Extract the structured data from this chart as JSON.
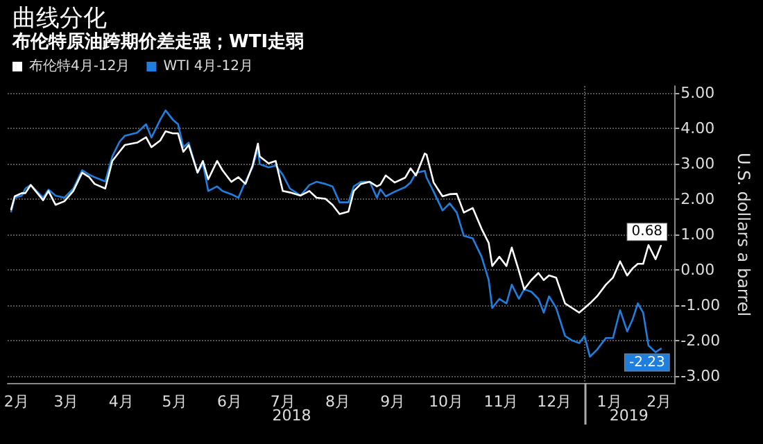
{
  "chart_data": {
    "type": "line",
    "title": "曲线分化",
    "subtitle": "布伦特原油跨期价差走强；WTI走弱",
    "ylabel": "U.S. dollars a barrel",
    "x": [
      "2018-02-12",
      "2018-02-14",
      "2018-02-18",
      "2018-02-20",
      "2018-02-23",
      "2018-03-02",
      "2018-03-05",
      "2018-03-09",
      "2018-03-14",
      "2018-03-19",
      "2018-03-24",
      "2018-03-28",
      "2018-03-31",
      "2018-04-06",
      "2018-04-10",
      "2018-04-14",
      "2018-04-17",
      "2018-04-24",
      "2018-04-29",
      "2018-05-02",
      "2018-05-07",
      "2018-05-10",
      "2018-05-14",
      "2018-05-17",
      "2018-05-20",
      "2018-05-23",
      "2018-05-28",
      "2018-05-31",
      "2018-06-03",
      "2018-06-08",
      "2018-06-11",
      "2018-06-16",
      "2018-06-20",
      "2018-06-24",
      "2018-06-28",
      "2018-07-01",
      "2018-07-02",
      "2018-07-07",
      "2018-07-11",
      "2018-07-15",
      "2018-07-19",
      "2018-07-25",
      "2018-07-30",
      "2018-08-03",
      "2018-08-08",
      "2018-08-12",
      "2018-08-16",
      "2018-08-21",
      "2018-08-24",
      "2018-08-28",
      "2018-09-02",
      "2018-09-06",
      "2018-09-08",
      "2018-09-11",
      "2018-09-16",
      "2018-09-22",
      "2018-09-25",
      "2018-09-28",
      "2018-10-03",
      "2018-10-04",
      "2018-10-08",
      "2018-10-13",
      "2018-10-17",
      "2018-10-21",
      "2018-10-25",
      "2018-10-30",
      "2018-11-04",
      "2018-11-08",
      "2018-11-10",
      "2018-11-14",
      "2018-11-18",
      "2018-11-21",
      "2018-11-25",
      "2018-11-28",
      "2018-12-02",
      "2018-12-06",
      "2018-12-09",
      "2018-12-12",
      "2018-12-16",
      "2018-12-21",
      "2018-12-25",
      "2018-12-29",
      "2019-01-01",
      "2019-01-04",
      "2019-01-08",
      "2019-01-13",
      "2019-01-17",
      "2019-01-21",
      "2019-01-25",
      "2019-01-28",
      "2019-01-31",
      "2019-02-03",
      "2019-02-06",
      "2019-02-10",
      "2019-02-13"
    ],
    "series": [
      {
        "name": "布伦特4月-12月",
        "color": "#ffffff",
        "values": [
          1.71,
          2.08,
          2.17,
          2.17,
          2.4,
          1.97,
          2.23,
          1.84,
          1.94,
          2.23,
          2.75,
          2.62,
          2.43,
          2.3,
          3.08,
          3.34,
          3.53,
          3.6,
          3.75,
          3.47,
          3.66,
          3.92,
          3.86,
          3.86,
          3.34,
          3.53,
          2.75,
          3.08,
          2.56,
          3.08,
          2.82,
          2.49,
          2.62,
          2.43,
          2.95,
          3.57,
          3.21,
          3.01,
          3.08,
          2.23,
          2.19,
          2.1,
          2.23,
          2.04,
          2.01,
          1.84,
          1.58,
          1.65,
          2.23,
          2.43,
          2.49,
          2.36,
          2.41,
          2.67,
          2.47,
          2.61,
          2.87,
          2.67,
          3.29,
          3.26,
          2.47,
          2.08,
          2.14,
          2.15,
          1.62,
          1.75,
          1.16,
          0.76,
          0.11,
          0.37,
          0.11,
          0.63,
          -0.03,
          -0.55,
          -0.29,
          -0.09,
          -0.29,
          -0.16,
          -0.22,
          -0.95,
          -1.08,
          -1.21,
          -1.08,
          -0.95,
          -0.75,
          -0.42,
          -0.22,
          0.24,
          -0.16,
          0.04,
          0.17,
          0.17,
          0.7,
          0.3,
          0.68
        ],
        "value_labels": [
          null,
          null,
          null,
          null,
          null,
          null,
          null,
          null,
          null,
          null,
          null,
          null,
          null,
          null,
          null,
          null,
          null,
          null,
          null,
          null,
          null,
          null,
          null,
          null,
          null,
          null,
          null,
          null,
          null,
          null,
          null,
          null,
          null,
          null,
          null,
          null,
          null,
          null,
          null,
          null,
          null,
          null,
          null,
          null,
          null,
          null,
          null,
          null,
          null,
          null,
          null,
          null,
          null,
          null,
          null,
          null,
          null,
          null,
          null,
          null,
          null,
          null,
          null,
          null,
          null,
          null,
          null,
          null,
          null,
          null,
          null,
          null,
          null,
          null,
          null,
          null,
          null,
          null,
          null,
          null,
          null,
          null,
          null,
          null,
          null,
          null,
          null,
          null,
          null,
          null,
          null,
          null,
          null,
          null,
          "0.68"
        ]
      },
      {
        "name": "WTI 4月-12月",
        "color": "#1f7fe0",
        "values": [
          1.65,
          2.04,
          2.1,
          2.3,
          2.4,
          2.04,
          2.27,
          2.1,
          2.04,
          2.3,
          2.82,
          2.69,
          2.62,
          2.5,
          3.21,
          3.62,
          3.79,
          3.88,
          4.12,
          3.74,
          4.25,
          4.51,
          4.25,
          4.12,
          3.47,
          3.6,
          2.75,
          3.01,
          2.23,
          2.36,
          2.23,
          2.14,
          2.04,
          2.5,
          2.9,
          3.43,
          2.99,
          2.9,
          2.95,
          2.69,
          2.3,
          2.1,
          2.4,
          2.49,
          2.43,
          2.36,
          1.91,
          1.91,
          2.36,
          2.49,
          2.49,
          2.04,
          2.28,
          2.08,
          2.21,
          2.34,
          2.47,
          2.74,
          2.8,
          2.61,
          2.21,
          1.68,
          1.88,
          1.62,
          0.96,
          0.89,
          0.37,
          -0.29,
          -1.08,
          -0.82,
          -0.95,
          -0.42,
          -0.82,
          -0.55,
          -0.62,
          -0.82,
          -1.21,
          -0.75,
          -1.08,
          -1.87,
          -2.0,
          -2.07,
          -1.87,
          -2.46,
          -2.26,
          -1.93,
          -1.93,
          -1.14,
          -1.74,
          -1.41,
          -0.95,
          -1.21,
          -2.14,
          -2.33,
          -2.23
        ],
        "value_labels": [
          null,
          null,
          null,
          null,
          null,
          null,
          null,
          null,
          null,
          null,
          null,
          null,
          null,
          null,
          null,
          null,
          null,
          null,
          null,
          null,
          null,
          null,
          null,
          null,
          null,
          null,
          null,
          null,
          null,
          null,
          null,
          null,
          null,
          null,
          null,
          null,
          null,
          null,
          null,
          null,
          null,
          null,
          null,
          null,
          null,
          null,
          null,
          null,
          null,
          null,
          null,
          null,
          null,
          null,
          null,
          null,
          null,
          null,
          null,
          null,
          null,
          null,
          null,
          null,
          null,
          null,
          null,
          null,
          null,
          null,
          null,
          null,
          null,
          null,
          null,
          null,
          null,
          null,
          null,
          null,
          null,
          null,
          null,
          null,
          null,
          null,
          null,
          null,
          null,
          null,
          null,
          null,
          null,
          null,
          "-2.23"
        ]
      }
    ],
    "xlim": [
      "2018-02-10",
      "2019-02-21"
    ],
    "xticks": [
      {
        "value": "2018-02-15",
        "label": "2月"
      },
      {
        "value": "2018-03-15",
        "label": "3月"
      },
      {
        "value": "2018-04-15",
        "label": "4月"
      },
      {
        "value": "2018-05-15",
        "label": "5月"
      },
      {
        "value": "2018-06-15",
        "label": "6月"
      },
      {
        "value": "2018-07-15",
        "label": "7月"
      },
      {
        "value": "2018-08-15",
        "label": "8月"
      },
      {
        "value": "2018-09-15",
        "label": "9月"
      },
      {
        "value": "2018-10-15",
        "label": "10月"
      },
      {
        "value": "2018-11-15",
        "label": "11月"
      },
      {
        "value": "2018-12-15",
        "label": "12月"
      },
      {
        "value": "2019-01-01",
        "label": null
      },
      {
        "value": "2019-01-15",
        "label": "1月"
      },
      {
        "value": "2019-02-12",
        "label": "2月"
      }
    ],
    "x2lim": [
      "2018-02-10",
      "2019-02-21"
    ],
    "x2ticks": [
      {
        "value": "2018-07-20",
        "label": "2018"
      },
      {
        "value": "2019-01-26",
        "label": "2019"
      }
    ],
    "ylim": [
      -3.2,
      5.2
    ],
    "yticks": [
      {
        "value": -3,
        "label": "-3.00"
      },
      {
        "value": -2,
        "label": "-2.00"
      },
      {
        "value": -1,
        "label": "-1.00"
      },
      {
        "value": 0,
        "label": "0.00"
      },
      {
        "value": 1,
        "label": "1.00"
      },
      {
        "value": 2,
        "label": "2.00"
      },
      {
        "value": 3,
        "label": "3.00"
      },
      {
        "value": 4,
        "label": "4.00"
      },
      {
        "value": 5,
        "label": "5.00"
      }
    ],
    "grid": true,
    "legend": "top left",
    "marker": "none",
    "line_style": "solid"
  }
}
